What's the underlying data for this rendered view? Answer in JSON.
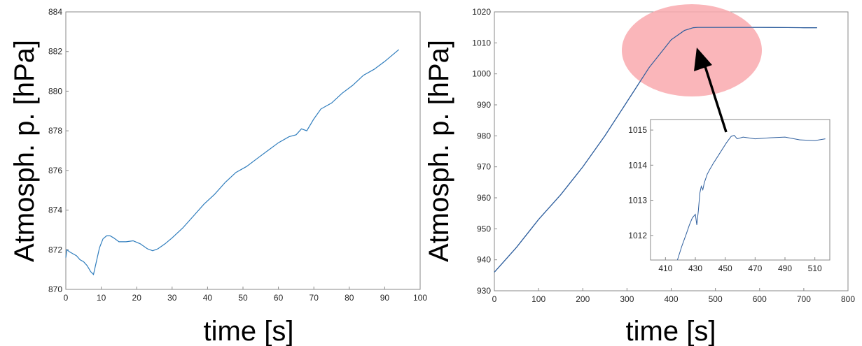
{
  "chart_data": [
    {
      "type": "line",
      "xlabel": "time [s]",
      "ylabel": "Atmosph. p. [hPa]",
      "xlim": [
        0,
        100
      ],
      "ylim": [
        870,
        884
      ],
      "xticks": [
        "0",
        "10",
        "20",
        "30",
        "40",
        "50",
        "60",
        "70",
        "80",
        "90",
        "100"
      ],
      "yticks": [
        "870",
        "872",
        "874",
        "876",
        "878",
        "880",
        "882",
        "884"
      ],
      "line_color": "#2f7dbd",
      "series": [
        {
          "x": [
            0,
            0.3,
            1,
            2,
            3,
            4,
            5,
            6,
            7,
            7.8,
            8.5,
            9.5,
            10.5,
            11.5,
            12.5,
            13.5,
            15,
            17,
            19,
            21,
            23,
            24.5,
            26,
            28,
            30,
            33,
            36,
            39,
            42,
            45,
            48,
            51,
            54,
            57,
            60,
            63,
            65,
            66.5,
            68,
            70,
            72,
            75,
            78,
            81,
            84,
            87,
            90,
            92,
            94
          ],
          "y": [
            871.6,
            872.0,
            871.9,
            871.8,
            871.7,
            871.5,
            871.4,
            871.2,
            870.9,
            870.75,
            871.3,
            872.1,
            872.55,
            872.7,
            872.7,
            872.6,
            872.4,
            872.4,
            872.45,
            872.3,
            872.05,
            871.95,
            872.05,
            872.3,
            872.6,
            873.1,
            873.7,
            874.3,
            874.8,
            875.4,
            875.9,
            876.2,
            876.6,
            877.0,
            877.4,
            877.7,
            877.8,
            878.1,
            878.0,
            878.6,
            879.1,
            879.4,
            879.9,
            880.3,
            880.8,
            881.1,
            881.5,
            881.8,
            882.1
          ]
        }
      ]
    },
    {
      "type": "line",
      "xlabel": "time [s]",
      "ylabel": "Atmosph. p. [hPa]",
      "xlim": [
        0,
        800
      ],
      "ylim": [
        930,
        1020
      ],
      "xticks": [
        "0",
        "100",
        "200",
        "300",
        "400",
        "500",
        "600",
        "700",
        "800"
      ],
      "yticks": [
        "930",
        "940",
        "950",
        "960",
        "970",
        "980",
        "990",
        "1000",
        "1010",
        "1020"
      ],
      "line_color": "#2f5f9e",
      "highlight_color": "#f9a9ae",
      "arrow_color": "#000000",
      "series": [
        {
          "x": [
            0,
            50,
            100,
            150,
            200,
            250,
            300,
            350,
            400,
            430,
            450,
            460,
            500,
            600,
            700,
            730
          ],
          "y": [
            936,
            944,
            953,
            961,
            970,
            980,
            991,
            1002,
            1011,
            1014,
            1014.9,
            1015,
            1015,
            1015,
            1014.9,
            1014.9
          ]
        }
      ],
      "inset": {
        "xlim": [
          400,
          520
        ],
        "ylim": [
          1011.3,
          1015.3
        ],
        "xticks": [
          "410",
          "430",
          "450",
          "470",
          "490",
          "510"
        ],
        "yticks": [
          "1012",
          "1013",
          "1014",
          "1015"
        ],
        "series": [
          {
            "x": [
              418,
              421,
              424,
              426,
              428,
              430,
              431,
              432,
              433,
              434,
              435,
              436,
              438,
              440,
              442,
              445,
              448,
              451,
              454,
              456,
              458,
              462,
              470,
              480,
              490,
              500,
              510,
              517
            ],
            "y": [
              1011.3,
              1011.7,
              1012.05,
              1012.3,
              1012.5,
              1012.6,
              1012.3,
              1012.7,
              1013.2,
              1013.4,
              1013.3,
              1013.5,
              1013.75,
              1013.9,
              1014.05,
              1014.25,
              1014.45,
              1014.65,
              1014.82,
              1014.85,
              1014.75,
              1014.8,
              1014.75,
              1014.78,
              1014.8,
              1014.72,
              1014.7,
              1014.75
            ]
          }
        ]
      }
    }
  ]
}
